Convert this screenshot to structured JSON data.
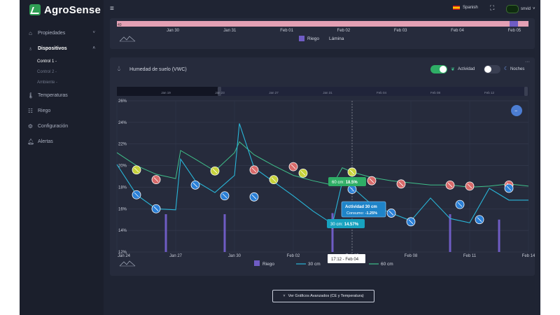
{
  "app": {
    "name": "AgroSense"
  },
  "sidebar": {
    "items": [
      {
        "label": "Propiedades",
        "icon": "home-icon",
        "chevron": "˅"
      },
      {
        "label": "Dispositivos",
        "icon": "device-icon",
        "chevron": "˄"
      },
      {
        "label": "Temperaturas",
        "icon": "thermometer-icon"
      },
      {
        "label": "Riego",
        "icon": "irrigation-icon"
      },
      {
        "label": "Configuración",
        "icon": "gear-icon"
      },
      {
        "label": "Alertas",
        "icon": "bell-icon"
      }
    ],
    "subitems": [
      "Control 1 -",
      "Control 2 -",
      "Ambiente -"
    ]
  },
  "header": {
    "language": "Spanish",
    "user": "snvid"
  },
  "top_chart": {
    "dates": [
      "Jan 30",
      "Jan 31",
      "Feb 01",
      "Feb 02",
      "Feb 03",
      "Feb 04",
      "Feb 05"
    ],
    "legend": [
      "Riego",
      "Lámina"
    ],
    "tick0": "40",
    "colors": {
      "band": "#e3a0b4",
      "riego": "#6f5cc4"
    }
  },
  "vwc_card": {
    "title": "Humedad de suelo (VWC)",
    "toggle_actividad": {
      "label": "Actividad",
      "on": true
    },
    "toggle_noches": {
      "label": "Noches",
      "on": false
    },
    "navigator_dates": [
      "Jan 19",
      "Jan 23",
      "Jan 27",
      "Jan 31",
      "Feb 04",
      "Feb 08",
      "Feb 12"
    ]
  },
  "chart_data": {
    "type": "line",
    "x_type": "date",
    "x_ticks": [
      "Jan 24",
      "Jan 27",
      "Jan 30",
      "Feb 02",
      "Feb 05",
      "Feb 08",
      "Feb 11",
      "Feb 14"
    ],
    "y_ticks": [
      "26%",
      "24%",
      "22%",
      "20%",
      "18%",
      "16%",
      "14%",
      "12%"
    ],
    "ylim": [
      12,
      26
    ],
    "xlim": [
      "2025-01-24",
      "2025-02-14"
    ],
    "series": [
      {
        "name": "60 cm",
        "color": "#3fbf8a",
        "x": [
          "2025-01-24",
          "2025-01-25",
          "2025-01-26",
          "2025-01-27",
          "2025-01-27T06",
          "2025-01-28",
          "2025-01-29",
          "2025-01-30",
          "2025-01-30T06",
          "2025-01-31",
          "2025-02-01",
          "2025-02-02",
          "2025-02-03",
          "2025-02-04",
          "2025-02-04T12",
          "2025-02-05",
          "2025-02-06",
          "2025-02-07",
          "2025-02-08",
          "2025-02-09",
          "2025-02-10",
          "2025-02-11",
          "2025-02-12",
          "2025-02-13",
          "2025-02-14"
        ],
        "y": [
          21.2,
          20.0,
          19.2,
          18.8,
          21.4,
          20.6,
          19.5,
          21.2,
          22.2,
          21.0,
          20.0,
          19.1,
          18.6,
          18.2,
          19.8,
          19.4,
          18.9,
          18.6,
          18.4,
          18.2,
          18.2,
          18.0,
          18.1,
          18.3,
          18.1
        ]
      },
      {
        "name": "30 cm",
        "color": "#29b6d8",
        "x": [
          "2025-01-24",
          "2025-01-25",
          "2025-01-26",
          "2025-01-27",
          "2025-01-27T06",
          "2025-01-28",
          "2025-01-29",
          "2025-01-30",
          "2025-01-30T06",
          "2025-01-31",
          "2025-02-01",
          "2025-02-02",
          "2025-02-03",
          "2025-02-04",
          "2025-02-04T12",
          "2025-02-05",
          "2025-02-06",
          "2025-02-07",
          "2025-02-08",
          "2025-02-09",
          "2025-02-10",
          "2025-02-11",
          "2025-02-12",
          "2025-02-13",
          "2025-02-14"
        ],
        "y": [
          20.1,
          17.3,
          16.0,
          15.9,
          20.6,
          18.6,
          17.5,
          19.1,
          23.9,
          19.8,
          18.5,
          17.2,
          15.8,
          14.6,
          18.5,
          18.0,
          16.4,
          15.6,
          14.9,
          17.0,
          15.1,
          14.7,
          17.9,
          16.8,
          16.8
        ]
      }
    ],
    "riego": {
      "name": "Riego",
      "color": "#6f5cc4",
      "x": [
        "2025-01-26T12",
        "2025-01-29T12",
        "2025-02-04",
        "2025-02-10",
        "2025-02-12T12"
      ],
      "y": [
        15.5,
        15.5,
        15.6,
        15.5,
        15.0
      ]
    },
    "markers": {
      "yellow": [
        [
          "2025-01-25",
          19.6
        ],
        [
          "2025-01-29",
          19.5
        ],
        [
          "2025-02-01",
          18.7
        ],
        [
          "2025-02-02T12",
          19.3
        ],
        [
          "2025-02-05",
          19.4
        ]
      ],
      "red": [
        [
          "2025-01-26",
          18.7
        ],
        [
          "2025-01-31",
          19.6
        ],
        [
          "2025-02-02",
          19.9
        ],
        [
          "2025-02-06",
          18.6
        ],
        [
          "2025-02-07T12",
          18.3
        ],
        [
          "2025-02-10",
          18.2
        ],
        [
          "2025-02-11",
          18.1
        ],
        [
          "2025-02-13",
          18.2
        ]
      ],
      "blue": [
        [
          "2025-01-25",
          17.3
        ],
        [
          "2025-01-26",
          16.0
        ],
        [
          "2025-01-28",
          18.2
        ],
        [
          "2025-01-29T12",
          17.2
        ],
        [
          "2025-01-31",
          17.1
        ],
        [
          "2025-02-04",
          14.6
        ],
        [
          "2025-02-05",
          17.8
        ],
        [
          "2025-02-07",
          15.6
        ],
        [
          "2025-02-08",
          14.8
        ],
        [
          "2025-02-10T12",
          16.4
        ],
        [
          "2025-02-11T12",
          15.0
        ],
        [
          "2025-02-13",
          17.9
        ]
      ]
    },
    "tooltips": {
      "green": {
        "label": "60 cm:",
        "value": "18.5%"
      },
      "activity": {
        "title": "Actividad 30 cm",
        "label": "Consumo:",
        "value": "-1.25%"
      },
      "blue": {
        "label": "30 cm:",
        "value": "14.57%"
      },
      "crosshair": "17:12 - Feb 04"
    },
    "legend": [
      "Riego",
      "30 cm",
      "60 cm"
    ]
  },
  "footer": {
    "advanced_button": "Ver Gráficos Avanzados (CE y Temperatura)"
  }
}
